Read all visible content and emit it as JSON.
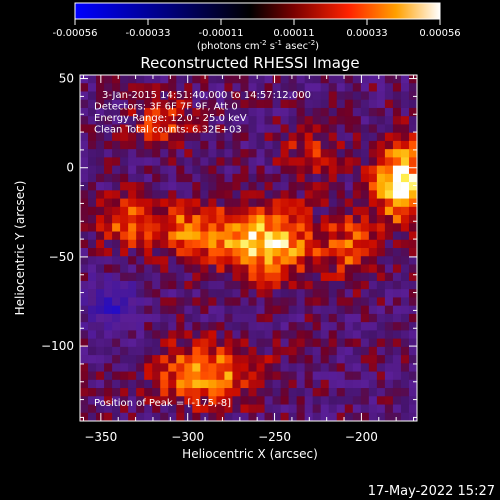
{
  "chart_data": {
    "type": "heatmap",
    "title": "Reconstructed RHESSI Image",
    "xlabel": "Heliocentric X (arcsec)",
    "ylabel": "Heliocentric Y (arcsec)",
    "xlim": [
      -362,
      -168
    ],
    "ylim": [
      -142,
      52
    ],
    "xticks": [
      -350,
      -300,
      -250,
      -200
    ],
    "yticks": [
      50,
      0,
      -50,
      -100
    ],
    "colorbar": {
      "ticks": [
        "-0.00056",
        "-0.00033",
        "-0.00011",
        "0.00011",
        "0.00033",
        "0.00056"
      ],
      "range": [
        -0.00056,
        0.00056
      ],
      "label_main": "(photons cm",
      "label_exp1": "-2",
      "label_mid": " s",
      "label_exp2": "-1",
      "label_mid2": " asec",
      "label_exp3": "-2",
      "label_end": ")"
    },
    "annotations": [
      "3-Jan-2015 14:51:40.000 to 14:57:12.000",
      "Detectors: 3F 6F 7F 9F, Att 0",
      "Energy Range: 12.0 - 25.0 keV",
      "Clean    Total counts: 6.32E+03"
    ],
    "peak_label": "Position of Peak = [-175,-8]",
    "sources": [
      {
        "x": -178,
        "y": -8,
        "amp": 1.0,
        "sx": 11,
        "sy": 16
      },
      {
        "x": -255,
        "y": -42,
        "amp": 0.85,
        "sx": 22,
        "sy": 14
      },
      {
        "x": -300,
        "y": -35,
        "amp": 0.55,
        "sx": 14,
        "sy": 10
      },
      {
        "x": -335,
        "y": -30,
        "amp": 0.55,
        "sx": 12,
        "sy": 10
      },
      {
        "x": -290,
        "y": -115,
        "amp": 0.7,
        "sx": 22,
        "sy": 12
      },
      {
        "x": -315,
        "y": 25,
        "amp": 0.45,
        "sx": 12,
        "sy": 10
      },
      {
        "x": -205,
        "y": -45,
        "amp": 0.45,
        "sx": 10,
        "sy": 12
      },
      {
        "x": -230,
        "y": 10,
        "amp": 0.35,
        "sx": 12,
        "sy": 10
      }
    ],
    "negative_region": {
      "x": -343,
      "y": -77,
      "amp": -0.55,
      "sx": 10,
      "sy": 10
    }
  },
  "timestamp": "17-May-2022 15:27"
}
